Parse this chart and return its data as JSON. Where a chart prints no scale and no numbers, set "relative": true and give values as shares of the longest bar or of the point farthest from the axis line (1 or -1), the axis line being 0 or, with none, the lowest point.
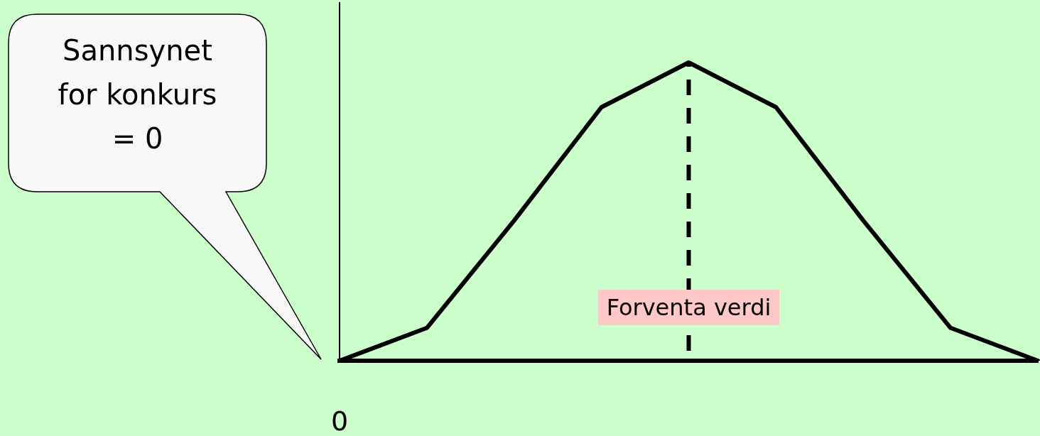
{
  "chart_data": {
    "type": "line",
    "relative": true,
    "categories": [
      null,
      null,
      null,
      null,
      null,
      null,
      null,
      null,
      null
    ],
    "series": [
      {
        "color": "#000000",
        "values": [
          0,
          0.11,
          0.47,
          0.85,
          1,
          0.85,
          0.47,
          0.11,
          0
        ]
      }
    ],
    "ref_lines": [
      {
        "axis": "x",
        "label": "Forventa verdi",
        "color": "#000000",
        "line_style": "dashed"
      }
    ],
    "annotations": [
      "Sannsynet\nfor konkurs\n= 0",
      "0"
    ],
    "marker": "none",
    "line_style": "solid",
    "legend": false
  }
}
